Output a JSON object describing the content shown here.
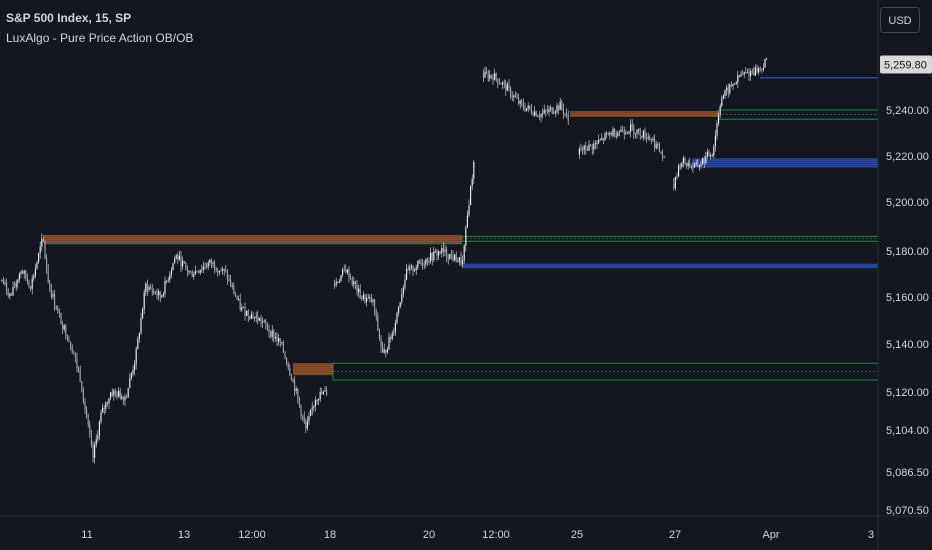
{
  "legend": {
    "symbol": "S&P 500 Index, 15, SP",
    "indicator": "LuxAlgo - Pure Price Action OB/OB"
  },
  "currency_button": "USD",
  "colors": {
    "background": "#131722",
    "candle": "#e6e6e6",
    "bearish_ob": "#c0642a",
    "bullish_ob": "#2f5bd3",
    "green_line": "#22a04b",
    "axis_text": "#d1d4dc",
    "last_price_bg": "#d9d9d9"
  },
  "chart_data": {
    "type": "candlestick",
    "price_axis": {
      "ticks": [
        5070.5,
        5086.5,
        5104.0,
        5120.0,
        5140.0,
        5160.0,
        5180.0,
        5200.0,
        5220.0,
        5240.0
      ],
      "tick_labels": [
        "5,070.50",
        "5,086.50",
        "5,104.00",
        "5,120.00",
        "5,140.00",
        "5,160.00",
        "5,180.00",
        "5,200.00",
        "5,220.00",
        "5,240.00"
      ],
      "last_price": 5259.8,
      "last_price_label": "5,259.80"
    },
    "time_axis": {
      "labels": [
        "11",
        "13",
        "12:00",
        "18",
        "20",
        "12:00",
        "25",
        "27",
        "Apr",
        "3"
      ]
    },
    "price_path": [
      [
        0,
        5168
      ],
      [
        10,
        5160
      ],
      [
        20,
        5172
      ],
      [
        30,
        5165
      ],
      [
        42,
        5185
      ],
      [
        48,
        5165
      ],
      [
        60,
        5150
      ],
      [
        70,
        5140
      ],
      [
        80,
        5125
      ],
      [
        92,
        5092
      ],
      [
        100,
        5110
      ],
      [
        110,
        5120
      ],
      [
        125,
        5118
      ],
      [
        135,
        5135
      ],
      [
        145,
        5165
      ],
      [
        160,
        5160
      ],
      [
        175,
        5178
      ],
      [
        190,
        5170
      ],
      [
        210,
        5175
      ],
      [
        225,
        5170
      ],
      [
        240,
        5155
      ],
      [
        260,
        5150
      ],
      [
        280,
        5140
      ],
      [
        292,
        5125
      ],
      [
        305,
        5104
      ],
      [
        315,
        5118
      ],
      [
        327,
        5120
      ],
      [
        333,
        5165
      ],
      [
        345,
        5172
      ],
      [
        360,
        5160
      ],
      [
        372,
        5158
      ],
      [
        382,
        5135
      ],
      [
        392,
        5145
      ],
      [
        405,
        5170
      ],
      [
        420,
        5175
      ],
      [
        440,
        5180
      ],
      [
        462,
        5175
      ],
      [
        468,
        5200
      ],
      [
        474,
        5220
      ],
      [
        482,
        5255
      ],
      [
        492,
        5255
      ],
      [
        505,
        5250
      ],
      [
        520,
        5242
      ],
      [
        540,
        5238
      ],
      [
        560,
        5242
      ],
      [
        568,
        5235
      ],
      [
        578,
        5222
      ],
      [
        595,
        5225
      ],
      [
        610,
        5230
      ],
      [
        630,
        5232
      ],
      [
        650,
        5228
      ],
      [
        662,
        5220
      ],
      [
        672,
        5205
      ],
      [
        680,
        5218
      ],
      [
        695,
        5215
      ],
      [
        712,
        5222
      ],
      [
        720,
        5245
      ],
      [
        740,
        5255
      ],
      [
        760,
        5258
      ],
      [
        767,
        5262
      ]
    ],
    "order_blocks": [
      {
        "kind": "bearish",
        "x_start": 44,
        "x_end": 462,
        "top": 5186.5,
        "bottom": 5183
      },
      {
        "kind": "bearish",
        "x_start": 293,
        "x_end": 333,
        "top": 5132,
        "bottom": 5127
      },
      {
        "kind": "bearish",
        "x_start": 570,
        "x_end": 718,
        "top": 5239.5,
        "bottom": 5237
      },
      {
        "kind": "bullish",
        "x_start": 462,
        "x_end": 878,
        "top": 5174.5,
        "bottom": 5172.5
      },
      {
        "kind": "bullish",
        "x_start": 692,
        "x_end": 878,
        "top": 5219,
        "bottom": 5215
      },
      {
        "kind": "bullish_line",
        "x_start": 760,
        "x_end": 878,
        "price": 5254
      },
      {
        "kind": "bluish_line",
        "x_start": 44,
        "x_end": 462,
        "price": 5183
      }
    ],
    "green_levels": [
      {
        "x_start": 462,
        "x_end": 878,
        "top": 5186,
        "bottom": 5184
      },
      {
        "x_start": 333,
        "x_end": 878,
        "top": 5132,
        "bottom": 5125
      },
      {
        "x_start": 718,
        "x_end": 878,
        "top": 5240,
        "bottom": 5236
      }
    ]
  }
}
